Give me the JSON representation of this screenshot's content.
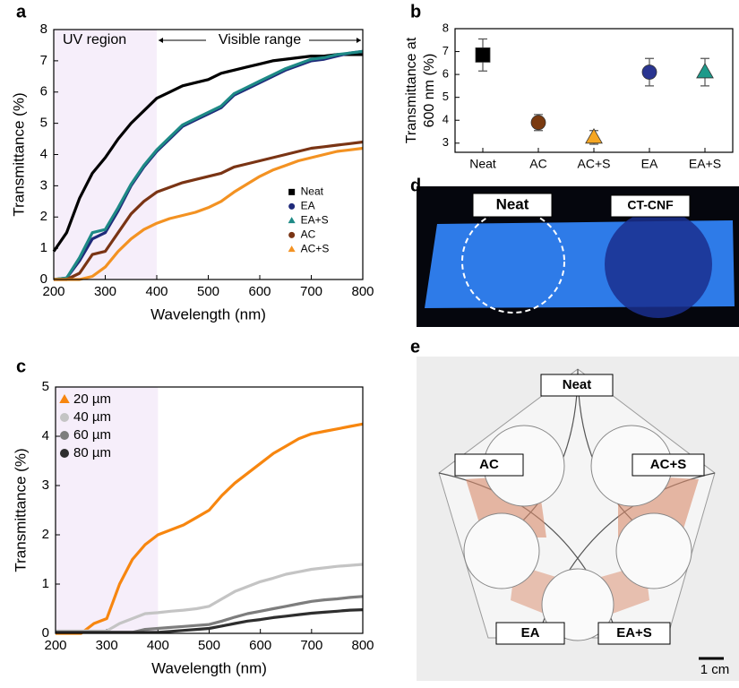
{
  "panel_labels": [
    "a",
    "b",
    "c",
    "d",
    "e"
  ],
  "chart_data": [
    {
      "type": "line",
      "xlabel": "Wavelength (nm)",
      "ylabel": "Transmittance (%)",
      "annotations": [
        "UV region",
        "Visible range"
      ],
      "highlight_x": [
        200,
        400
      ],
      "legend": "lower right",
      "xlim": [
        200,
        800
      ],
      "xticks": [
        200,
        300,
        400,
        500,
        600,
        700,
        800
      ],
      "ylim": [
        0,
        8
      ],
      "yticks": [
        0,
        1,
        2,
        3,
        4,
        5,
        6,
        7,
        8
      ],
      "x": [
        200,
        225,
        250,
        275,
        300,
        325,
        350,
        375,
        400,
        425,
        450,
        475,
        500,
        525,
        550,
        575,
        600,
        625,
        650,
        675,
        700,
        725,
        750,
        775,
        800
      ],
      "series": [
        {
          "name": "Neat",
          "color": "#000000",
          "marker": "square",
          "values": [
            0.9,
            1.5,
            2.6,
            3.4,
            3.9,
            4.5,
            5.0,
            5.4,
            5.8,
            6.0,
            6.2,
            6.3,
            6.4,
            6.6,
            6.7,
            6.8,
            6.9,
            7.0,
            7.05,
            7.1,
            7.15,
            7.15,
            7.2,
            7.2,
            7.2
          ]
        },
        {
          "name": "EA",
          "color": "#1f2a7a",
          "marker": "circle",
          "values": [
            0,
            0.05,
            0.6,
            1.3,
            1.5,
            2.2,
            3.0,
            3.6,
            4.1,
            4.5,
            4.9,
            5.1,
            5.3,
            5.5,
            5.9,
            6.1,
            6.3,
            6.5,
            6.7,
            6.85,
            7.0,
            7.05,
            7.15,
            7.25,
            7.3
          ]
        },
        {
          "name": "EA+S",
          "color": "#1e8a86",
          "marker": "triangle",
          "values": [
            0,
            0.05,
            0.7,
            1.5,
            1.6,
            2.3,
            3.05,
            3.65,
            4.15,
            4.55,
            4.95,
            5.15,
            5.35,
            5.55,
            5.95,
            6.15,
            6.35,
            6.55,
            6.75,
            6.9,
            7.05,
            7.1,
            7.2,
            7.25,
            7.3
          ]
        },
        {
          "name": "AC",
          "color": "#7a3414",
          "marker": "circle",
          "values": [
            0,
            0,
            0.2,
            0.8,
            0.9,
            1.5,
            2.1,
            2.5,
            2.8,
            2.95,
            3.1,
            3.2,
            3.3,
            3.4,
            3.6,
            3.7,
            3.8,
            3.9,
            4.0,
            4.1,
            4.2,
            4.25,
            4.3,
            4.35,
            4.4
          ]
        },
        {
          "name": "AC+S",
          "color": "#f39222",
          "marker": "triangle",
          "values": [
            0,
            0,
            0,
            0.1,
            0.4,
            0.9,
            1.3,
            1.6,
            1.8,
            1.95,
            2.05,
            2.15,
            2.3,
            2.5,
            2.8,
            3.05,
            3.3,
            3.5,
            3.65,
            3.8,
            3.9,
            4.0,
            4.1,
            4.15,
            4.2
          ]
        }
      ]
    },
    {
      "type": "errorbar",
      "ylabel": [
        "Transmittance at",
        "600 nm (%)"
      ],
      "ylim": [
        2.6,
        8
      ],
      "yticks": [
        3,
        4,
        5,
        6,
        7,
        8
      ],
      "categories": [
        "Neat",
        "AC",
        "AC+S",
        "EA",
        "EA+S"
      ],
      "values": [
        6.85,
        3.9,
        3.25,
        6.1,
        6.1
      ],
      "errors": [
        0.7,
        0.35,
        0.3,
        0.6,
        0.6
      ],
      "colors": [
        "#000000",
        "#7a3a10",
        "#f5a623",
        "#2a3590",
        "#1e9a8a"
      ],
      "markers": [
        "square",
        "circle",
        "triangle",
        "circle",
        "triangle"
      ]
    },
    {
      "type": "line",
      "xlabel": "Wavelength (nm)",
      "ylabel": "Transmittance (%)",
      "highlight_x": [
        200,
        400
      ],
      "legend": "upper left",
      "xlim": [
        200,
        800
      ],
      "xticks": [
        200,
        300,
        400,
        500,
        600,
        700,
        800
      ],
      "ylim": [
        0,
        5
      ],
      "yticks": [
        0,
        1,
        2,
        3,
        4,
        5
      ],
      "x": [
        200,
        225,
        250,
        275,
        300,
        325,
        350,
        375,
        400,
        425,
        450,
        475,
        500,
        525,
        550,
        575,
        600,
        625,
        650,
        675,
        700,
        725,
        750,
        775,
        800
      ],
      "series": [
        {
          "name": "20 µm",
          "color": "#f7860f",
          "marker": "triangle",
          "values": [
            0,
            0,
            0,
            0.2,
            0.3,
            1.0,
            1.5,
            1.8,
            2.0,
            2.1,
            2.2,
            2.35,
            2.5,
            2.8,
            3.05,
            3.25,
            3.45,
            3.65,
            3.8,
            3.95,
            4.05,
            4.1,
            4.15,
            4.2,
            4.25
          ]
        },
        {
          "name": "40 µm",
          "color": "#c4c4c4",
          "marker": "circle",
          "values": [
            0.05,
            0.05,
            0.05,
            0.05,
            0.05,
            0.2,
            0.3,
            0.4,
            0.42,
            0.45,
            0.47,
            0.5,
            0.55,
            0.7,
            0.85,
            0.95,
            1.05,
            1.12,
            1.2,
            1.25,
            1.3,
            1.33,
            1.36,
            1.38,
            1.4
          ]
        },
        {
          "name": "60 µm",
          "color": "#7d7d7d",
          "marker": "circle",
          "values": [
            0.02,
            0.02,
            0.02,
            0.02,
            0.02,
            0.02,
            0.02,
            0.08,
            0.1,
            0.12,
            0.14,
            0.16,
            0.18,
            0.25,
            0.33,
            0.4,
            0.45,
            0.5,
            0.55,
            0.6,
            0.65,
            0.68,
            0.7,
            0.73,
            0.75
          ]
        },
        {
          "name": "80 µm",
          "color": "#2e2e2e",
          "marker": "circle",
          "values": [
            0.02,
            0.02,
            0.02,
            0.02,
            0.02,
            0.02,
            0.02,
            0.02,
            0.02,
            0.04,
            0.06,
            0.08,
            0.1,
            0.15,
            0.2,
            0.25,
            0.28,
            0.32,
            0.35,
            0.38,
            0.41,
            0.43,
            0.45,
            0.47,
            0.48
          ]
        }
      ]
    }
  ],
  "photos": [
    {
      "labels": [
        "Neat",
        "CT-CNF"
      ]
    },
    {
      "labels": [
        "Neat",
        "AC",
        "AC+S",
        "EA",
        "EA+S"
      ],
      "scale_bar": "1 cm"
    }
  ]
}
